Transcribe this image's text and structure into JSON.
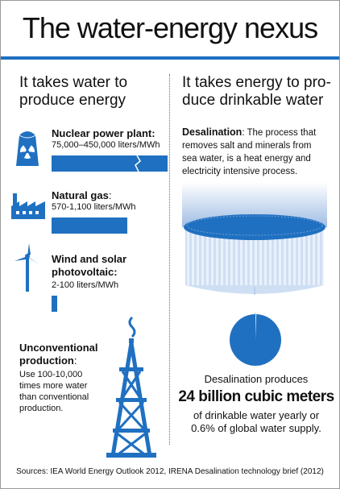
{
  "title": "The water-energy nexus",
  "left_heading": "It takes water to produce energy",
  "right_heading": "It takes energy to produce drinkable water",
  "right_heading_lines": [
    "It takes energy to pro-",
    "duce drinkable water"
  ],
  "left_heading_lines": [
    "It takes water to",
    "produce energy"
  ],
  "items": [
    {
      "title": "Nuclear power plant:",
      "sub": "75,000–450,000 liters/MWh",
      "icon": "nuclear-plant-icon",
      "bar_fraction": 1.0,
      "bar_break": true
    },
    {
      "title": "Natural gas",
      "title_suffix": ":",
      "sub": "570-1,100 liters/MWh",
      "icon": "factory-icon",
      "bar_fraction": 0.65
    },
    {
      "title_lines": [
        "Wind and solar",
        "photovoltaic:"
      ],
      "sub": "2-100 liters/MWh",
      "icon": "wind-turbine-icon",
      "bar_fraction": 0.04
    }
  ],
  "unconventional": {
    "title_lines": [
      "Unconventional",
      "production"
    ],
    "title_suffix": ":",
    "sub_lines": [
      "Use 100-10,000",
      "times more water",
      "than conventional",
      "production."
    ],
    "icon": "oil-rig-icon"
  },
  "desalination": {
    "label": "Desalination",
    "text": ": The process that removes salt and minerals from sea water, is a heat energy and electricity intensive process."
  },
  "stats": {
    "line1": "Desalination produces",
    "line2": "24 billion cubic meters",
    "line3a": "of drinkable water yearly or",
    "line3b": "0.6% of global  water supply.",
    "share_percent": 0.6
  },
  "sources": "Sources: IEA World Energy Outlook 2012, IRENA Desalination technology brief (2012)",
  "colors": {
    "accent": "#1f70c1",
    "light": "#dbe6f5",
    "mid": "#9fbde4",
    "text": "#111111"
  }
}
